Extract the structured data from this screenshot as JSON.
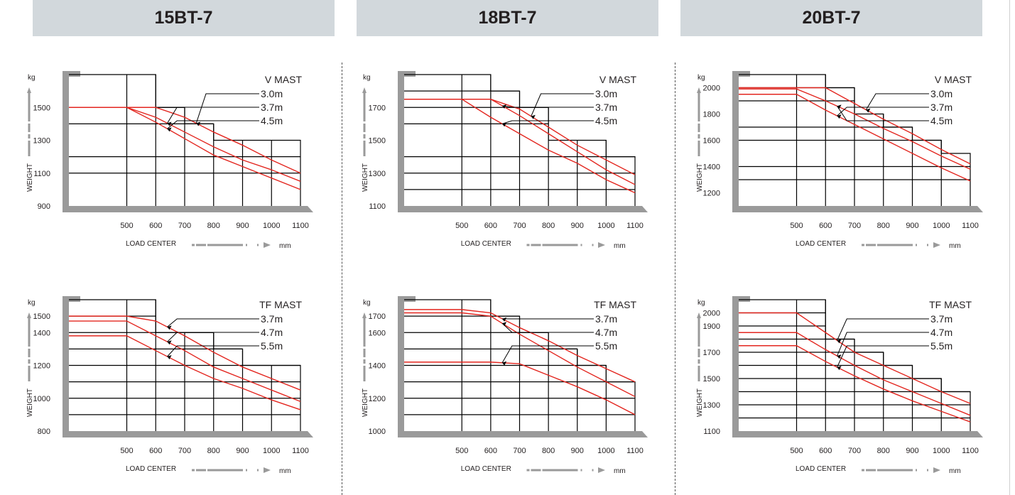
{
  "models": [
    "15BT-7",
    "18BT-7",
    "20BT-7"
  ],
  "colors": {
    "banner": "#d2d8dc",
    "frame": "#9a9a9a",
    "grid": "#000000",
    "curve": "#e3261f",
    "text": "#231f20"
  },
  "chart_data": [
    {
      "type": "line",
      "model": "15BT-7",
      "mast": "V MAST",
      "yunit": "kg",
      "ylabel": "WEIGHT",
      "xlabel": "LOAD CENTER",
      "xunit": "mm",
      "yticks": [
        900,
        1100,
        1300,
        1500
      ],
      "xticks": [
        500,
        600,
        700,
        800,
        900,
        1000,
        1100
      ],
      "ylim": [
        900,
        1700
      ],
      "xlim": [
        300,
        1100
      ],
      "grid": [
        [
          500,
          1700
        ],
        [
          600,
          1700
        ],
        [
          700,
          1500
        ],
        [
          800,
          1400
        ],
        [
          900,
          1300
        ],
        [
          1000,
          1300
        ],
        [
          1100,
          1300
        ]
      ],
      "hlines": [
        1100,
        1200,
        1400,
        1500
      ],
      "legend": [
        "V MAST",
        "3.0m",
        "3.7m",
        "4.5m"
      ],
      "series": [
        {
          "name": "3.0m",
          "x": [
            300,
            600,
            700,
            800,
            900,
            1000,
            1100
          ],
          "y": [
            1500,
            1500,
            1440,
            1350,
            1270,
            1180,
            1100
          ]
        },
        {
          "name": "3.7m",
          "x": [
            300,
            500,
            600,
            700,
            800,
            900,
            1000,
            1100
          ],
          "y": [
            1500,
            1500,
            1440,
            1350,
            1260,
            1180,
            1120,
            1050
          ]
        },
        {
          "name": "4.5m",
          "x": [
            300,
            500,
            600,
            700,
            800,
            900,
            1000,
            1100
          ],
          "y": [
            1500,
            1500,
            1410,
            1310,
            1210,
            1140,
            1070,
            1000
          ]
        }
      ]
    },
    {
      "type": "line",
      "model": "18BT-7",
      "mast": "V MAST",
      "yunit": "kg",
      "ylabel": "WEIGHT",
      "xlabel": "LOAD CENTER",
      "xunit": "mm",
      "yticks": [
        1100,
        1300,
        1500,
        1700
      ],
      "xticks": [
        500,
        600,
        700,
        800,
        900,
        1000,
        1100
      ],
      "ylim": [
        1100,
        1900
      ],
      "xlim": [
        300,
        1100
      ],
      "grid": [
        [
          500,
          1900
        ],
        [
          600,
          1900
        ],
        [
          700,
          1800
        ],
        [
          800,
          1700
        ],
        [
          900,
          1500
        ],
        [
          1000,
          1500
        ],
        [
          1100,
          1400
        ]
      ],
      "hlines": [
        1200,
        1300,
        1400,
        1600,
        1700,
        1800
      ],
      "legend": [
        "V MAST",
        "3.0m",
        "3.7m",
        "4.5m"
      ],
      "series": [
        {
          "name": "3.0m",
          "x": [
            300,
            600,
            700,
            800,
            900,
            1000,
            1100
          ],
          "y": [
            1750,
            1750,
            1690,
            1580,
            1470,
            1380,
            1290
          ]
        },
        {
          "name": "3.7m",
          "x": [
            300,
            500,
            600,
            700,
            800,
            900,
            1000,
            1100
          ],
          "y": [
            1750,
            1750,
            1750,
            1650,
            1540,
            1430,
            1320,
            1230
          ]
        },
        {
          "name": "4.5m",
          "x": [
            300,
            500,
            600,
            700,
            800,
            900,
            1000,
            1100
          ],
          "y": [
            1750,
            1750,
            1640,
            1540,
            1440,
            1360,
            1260,
            1180
          ]
        }
      ]
    },
    {
      "type": "line",
      "model": "20BT-7",
      "mast": "V MAST",
      "yunit": "kg",
      "ylabel": "WEIGHT",
      "xlabel": "LOAD CENTER",
      "xunit": "mm",
      "yticks": [
        1200,
        1400,
        1600,
        1800,
        2000
      ],
      "xticks": [
        500,
        600,
        700,
        800,
        900,
        1000,
        1100
      ],
      "ylim": [
        1100,
        2100
      ],
      "xlim": [
        300,
        1100
      ],
      "grid": [
        [
          500,
          2100
        ],
        [
          600,
          2100
        ],
        [
          700,
          2000
        ],
        [
          800,
          1800
        ],
        [
          900,
          1700
        ],
        [
          1000,
          1600
        ],
        [
          1100,
          1500
        ]
      ],
      "hlines": [
        1300,
        1400,
        1600,
        1700,
        1900,
        2000
      ],
      "legend": [
        "V MAST",
        "3.0m",
        "3.7m",
        "4.5m"
      ],
      "series": [
        {
          "name": "3.0m",
          "x": [
            300,
            600,
            700,
            800,
            900,
            1000,
            1100
          ],
          "y": [
            2000,
            2000,
            1880,
            1760,
            1650,
            1530,
            1420
          ]
        },
        {
          "name": "3.7m",
          "x": [
            300,
            500,
            600,
            700,
            800,
            900,
            1000,
            1100
          ],
          "y": [
            1950,
            1950,
            1830,
            1720,
            1610,
            1500,
            1390,
            1290
          ]
        },
        {
          "name": "4.5m",
          "x": [
            300,
            500,
            600,
            700,
            800,
            900,
            1000,
            1100
          ],
          "y": [
            1990,
            1990,
            1900,
            1800,
            1690,
            1590,
            1480,
            1380
          ]
        }
      ]
    },
    {
      "type": "line",
      "model": "15BT-7",
      "mast": "TF MAST",
      "yunit": "kg",
      "ylabel": "WEIGHT",
      "xlabel": "LOAD CENTER",
      "xunit": "mm",
      "yticks": [
        800,
        1000,
        1200,
        1400,
        1500
      ],
      "xticks": [
        500,
        600,
        700,
        800,
        900,
        1000,
        1100
      ],
      "ylim": [
        800,
        1600
      ],
      "xlim": [
        300,
        1100
      ],
      "grid": [
        [
          500,
          1600
        ],
        [
          600,
          1600
        ],
        [
          700,
          1400
        ],
        [
          800,
          1400
        ],
        [
          900,
          1300
        ],
        [
          1000,
          1200
        ],
        [
          1100,
          1200
        ]
      ],
      "hlines": [
        900,
        1000,
        1100,
        1200,
        1300,
        1400,
        1500
      ],
      "legend": [
        "TF  MAST",
        "3.7m",
        "4.7m",
        "5.5m"
      ],
      "series": [
        {
          "name": "3.7m",
          "x": [
            300,
            500,
            600,
            700,
            800,
            900,
            1000,
            1100
          ],
          "y": [
            1500,
            1500,
            1470,
            1380,
            1280,
            1190,
            1120,
            1050
          ]
        },
        {
          "name": "4.7m",
          "x": [
            300,
            500,
            600,
            700,
            800,
            900,
            1000,
            1100
          ],
          "y": [
            1470,
            1470,
            1380,
            1290,
            1190,
            1120,
            1050,
            980
          ]
        },
        {
          "name": "5.5m",
          "x": [
            300,
            500,
            600,
            700,
            800,
            900,
            1000,
            1100
          ],
          "y": [
            1380,
            1380,
            1290,
            1200,
            1120,
            1060,
            990,
            930
          ]
        }
      ]
    },
    {
      "type": "line",
      "model": "18BT-7",
      "mast": "TF MAST",
      "yunit": "kg",
      "ylabel": "WEIGHT",
      "xlabel": "LOAD CENTER",
      "xunit": "mm",
      "yticks": [
        1000,
        1200,
        1400,
        1600,
        1700
      ],
      "xticks": [
        500,
        600,
        700,
        800,
        900,
        1000,
        1100
      ],
      "ylim": [
        1000,
        1800
      ],
      "xlim": [
        300,
        1100
      ],
      "grid": [
        [
          500,
          1800
        ],
        [
          600,
          1800
        ],
        [
          700,
          1700
        ],
        [
          800,
          1600
        ],
        [
          900,
          1500
        ],
        [
          1000,
          1400
        ],
        [
          1100,
          1300
        ]
      ],
      "hlines": [
        1100,
        1200,
        1300,
        1400,
        1500,
        1600,
        1700
      ],
      "legend": [
        "TF  MAST",
        "3.7m",
        "4.7m",
        "5.5m"
      ],
      "series": [
        {
          "name": "3.7m",
          "x": [
            300,
            500,
            600,
            700,
            800,
            900,
            1000,
            1100
          ],
          "y": [
            1740,
            1740,
            1720,
            1630,
            1550,
            1460,
            1380,
            1300
          ]
        },
        {
          "name": "4.7m",
          "x": [
            300,
            500,
            600,
            700,
            800,
            900,
            1000,
            1100
          ],
          "y": [
            1720,
            1720,
            1700,
            1590,
            1490,
            1390,
            1300,
            1210
          ]
        },
        {
          "name": "5.5m",
          "x": [
            300,
            500,
            600,
            700,
            800,
            900,
            1000,
            1100
          ],
          "y": [
            1420,
            1420,
            1420,
            1410,
            1340,
            1270,
            1190,
            1100
          ]
        }
      ]
    },
    {
      "type": "line",
      "model": "20BT-7",
      "mast": "TF MAST",
      "yunit": "kg",
      "ylabel": "WEIGHT",
      "xlabel": "LOAD CENTER",
      "xunit": "mm",
      "yticks": [
        1100,
        1300,
        1500,
        1700,
        1900,
        2000
      ],
      "xticks": [
        500,
        600,
        700,
        800,
        900,
        1000,
        1100
      ],
      "ylim": [
        1100,
        2100
      ],
      "xlim": [
        300,
        1100
      ],
      "grid": [
        [
          500,
          2100
        ],
        [
          600,
          2100
        ],
        [
          700,
          1800
        ],
        [
          800,
          1700
        ],
        [
          900,
          1600
        ],
        [
          1000,
          1500
        ],
        [
          1100,
          1400
        ]
      ],
      "hlines": [
        1200,
        1300,
        1400,
        1500,
        1600,
        1700,
        1800,
        1900,
        2000
      ],
      "legend": [
        "TF  MAST",
        "3.7m",
        "4.7m",
        "5.5m"
      ],
      "series": [
        {
          "name": "3.7m",
          "x": [
            300,
            500,
            600,
            700,
            800,
            900,
            1000,
            1100
          ],
          "y": [
            2000,
            2000,
            1850,
            1700,
            1600,
            1500,
            1400,
            1310
          ]
        },
        {
          "name": "4.7m",
          "x": [
            300,
            500,
            600,
            700,
            800,
            900,
            1000,
            1100
          ],
          "y": [
            1850,
            1850,
            1720,
            1600,
            1490,
            1400,
            1310,
            1220
          ]
        },
        {
          "name": "5.5m",
          "x": [
            300,
            500,
            600,
            700,
            800,
            900,
            1000,
            1100
          ],
          "y": [
            1750,
            1750,
            1630,
            1520,
            1420,
            1330,
            1250,
            1170
          ]
        }
      ]
    }
  ]
}
